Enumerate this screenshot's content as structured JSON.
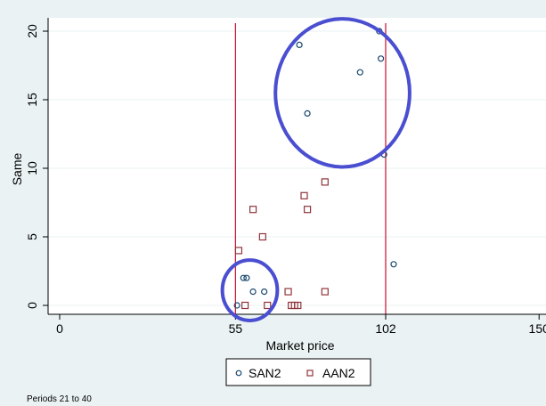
{
  "chart_data": {
    "type": "scatter",
    "title": "",
    "xlabel": "Market price",
    "ylabel": "Same",
    "xlim": [
      0,
      150
    ],
    "ylim": [
      0,
      20
    ],
    "x_ticks": [
      {
        "value": 0,
        "label": "0"
      },
      {
        "value": 55,
        "label": "55"
      },
      {
        "value": 102,
        "label": "102"
      },
      {
        "value": 150,
        "label": "150"
      }
    ],
    "y_ticks": [
      {
        "value": 0,
        "label": "0"
      },
      {
        "value": 5,
        "label": "5"
      },
      {
        "value": 10,
        "label": "10"
      },
      {
        "value": 15,
        "label": "15"
      },
      {
        "value": 20,
        "label": "20"
      }
    ],
    "reference_lines_x": [
      55,
      102
    ],
    "grid": "horizontal",
    "legend_position": "bottom",
    "note": "Periods 21 to 40",
    "colors": {
      "background": "#eaf2f3",
      "plot_background": "#ffffff",
      "gridline": "#eaf2f3",
      "reference_line": "#c8102e",
      "san2": "#1a476f",
      "aan2": "#90353b",
      "highlight_circle": "#4a4ed0"
    },
    "series": [
      {
        "name": "SAN2",
        "marker": "hollow-circle",
        "points": [
          {
            "x": 55.5,
            "y": 0
          },
          {
            "x": 57.5,
            "y": 2
          },
          {
            "x": 58.5,
            "y": 2
          },
          {
            "x": 60.5,
            "y": 1
          },
          {
            "x": 64,
            "y": 1
          },
          {
            "x": 75,
            "y": 19
          },
          {
            "x": 77.5,
            "y": 14
          },
          {
            "x": 94,
            "y": 17
          },
          {
            "x": 100,
            "y": 20
          },
          {
            "x": 100.5,
            "y": 18
          },
          {
            "x": 101.5,
            "y": 11
          },
          {
            "x": 104.5,
            "y": 3
          }
        ]
      },
      {
        "name": "AAN2",
        "marker": "hollow-square",
        "points": [
          {
            "x": 56,
            "y": 4
          },
          {
            "x": 58,
            "y": 0
          },
          {
            "x": 60.5,
            "y": 7
          },
          {
            "x": 63.5,
            "y": 5
          },
          {
            "x": 65,
            "y": 0
          },
          {
            "x": 71.5,
            "y": 1
          },
          {
            "x": 72.5,
            "y": 0
          },
          {
            "x": 73.5,
            "y": 0
          },
          {
            "x": 74.5,
            "y": 0
          },
          {
            "x": 76.5,
            "y": 8
          },
          {
            "x": 77.5,
            "y": 7
          },
          {
            "x": 83,
            "y": 9
          },
          {
            "x": 83,
            "y": 1
          }
        ]
      }
    ],
    "annotations": [
      {
        "type": "highlight-ellipse",
        "cx": 88.5,
        "cy": 15.5,
        "rx": 21,
        "ry": 5.4
      },
      {
        "type": "highlight-ellipse",
        "cx": 59.5,
        "cy": 1.1,
        "rx": 8.6,
        "ry": 2.2
      }
    ]
  }
}
